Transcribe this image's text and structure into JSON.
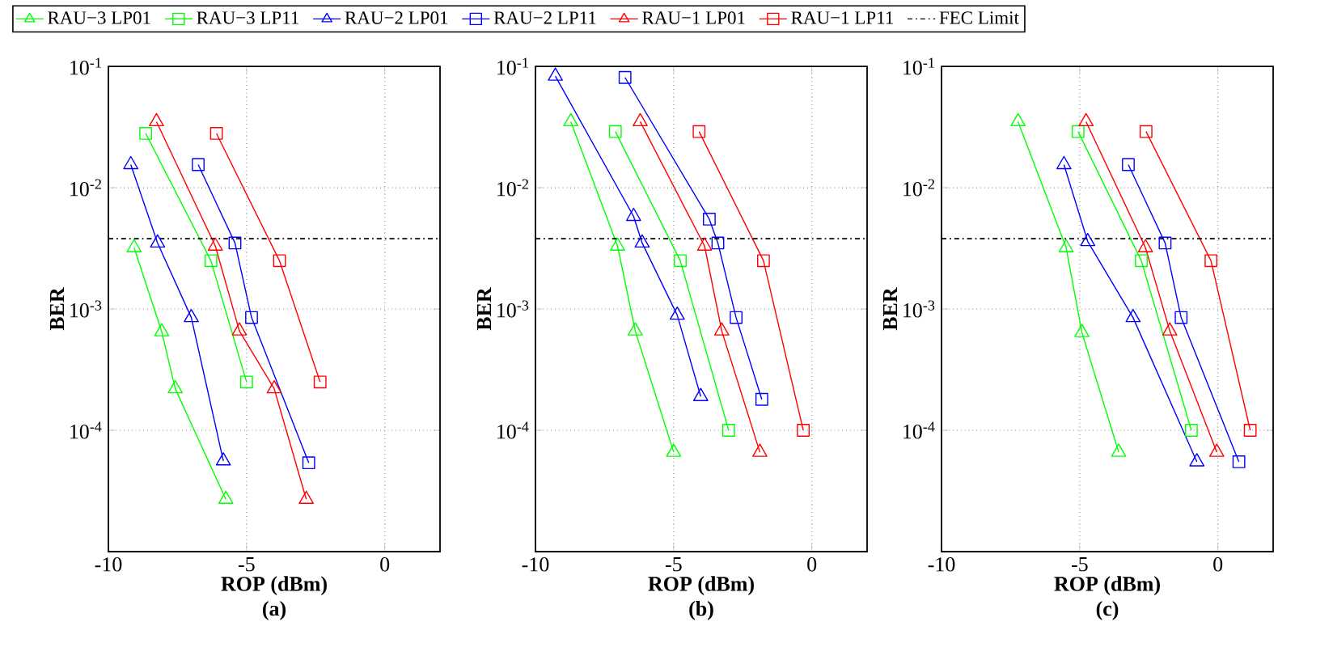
{
  "chart_data": [
    {
      "type": "line",
      "title": "(a)",
      "xlabel": "ROP (dBm)",
      "ylabel": "BER",
      "log": "y",
      "grid": true,
      "legend": "top",
      "xlim": [
        -10,
        2
      ],
      "xticks": [
        -10,
        -5,
        0
      ],
      "ylim": [
        1e-05,
        0.1
      ],
      "yticks": [
        {
          "value": 0.1,
          "label": "10$^{-1}$"
        },
        {
          "value": 0.01,
          "label": "10$^{-2}$"
        },
        {
          "value": 0.001,
          "label": "10$^{-3}$"
        },
        {
          "value": 0.0001,
          "label": "10$^{-4}$"
        }
      ],
      "series": [
        {
          "name": "RAU−3 LP01",
          "color": "#00ff00",
          "marker": "triangle",
          "x": [
            -9.07,
            -8.07,
            -7.58,
            -5.75
          ],
          "values": [
            0.0032,
            0.00065,
            0.00022,
            2.7e-05
          ]
        },
        {
          "name": "RAU−3 LP11",
          "color": "#00ff00",
          "marker": "square",
          "x": [
            -8.65,
            -6.29,
            -5.0
          ],
          "values": [
            0.028,
            0.0025,
            0.00025
          ]
        },
        {
          "name": "RAU−2 LP01",
          "color": "#0000ff",
          "marker": "triangle",
          "x": [
            -9.19,
            -8.22,
            -7.0,
            -5.84
          ],
          "values": [
            0.0155,
            0.0035,
            0.00085,
            5.6e-05
          ]
        },
        {
          "name": "RAU−2 LP11",
          "color": "#0000ff",
          "marker": "square",
          "x": [
            -6.75,
            -5.42,
            -4.82,
            -2.75
          ],
          "values": [
            0.0155,
            0.0035,
            0.00085,
            5.4e-05
          ]
        },
        {
          "name": "RAU−1 LP01",
          "color": "#ff0000",
          "marker": "triangle",
          "x": [
            -8.26,
            -6.13,
            -5.26,
            -4.0,
            -2.84
          ],
          "values": [
            0.035,
            0.0033,
            0.00066,
            0.00022,
            2.7e-05
          ]
        },
        {
          "name": "RAU−1 LP11",
          "color": "#ff0000",
          "marker": "square",
          "x": [
            -6.09,
            -3.81,
            -2.34
          ],
          "values": [
            0.028,
            0.0025,
            0.00025
          ]
        }
      ],
      "ref_lines": [
        {
          "axis": "y",
          "value": 0.0038,
          "label": "FEC Limit",
          "color": "#000000",
          "line_style": "dashdot"
        }
      ]
    },
    {
      "type": "line",
      "title": "(b)",
      "xlabel": "ROP (dBm)",
      "ylabel": "BER",
      "log": "y",
      "grid": true,
      "xlim": [
        -10,
        2
      ],
      "xticks": [
        -10,
        -5,
        0
      ],
      "ylim": [
        1e-05,
        0.1
      ],
      "yticks": [
        {
          "value": 0.1,
          "label": "10$^{-1}$"
        },
        {
          "value": 0.01,
          "label": "10$^{-2}$"
        },
        {
          "value": 0.001,
          "label": "10$^{-3}$"
        },
        {
          "value": 0.0001,
          "label": "10$^{-4}$"
        }
      ],
      "series": [
        {
          "color": "#00ff00",
          "marker": "triangle",
          "x": [
            -8.72,
            -7.03,
            -6.39,
            -5.0
          ],
          "values": [
            0.035,
            0.0033,
            0.00066,
            6.6e-05
          ]
        },
        {
          "color": "#00ff00",
          "marker": "square",
          "x": [
            -7.11,
            -4.76,
            -3.01
          ],
          "values": [
            0.029,
            0.0025,
            0.0001
          ]
        },
        {
          "color": "#0000ff",
          "marker": "triangle",
          "x": [
            -9.28,
            -6.45,
            -6.14,
            -4.87,
            -4.02
          ],
          "values": [
            0.083,
            0.0058,
            0.0035,
            0.00089,
            0.00019
          ]
        },
        {
          "color": "#0000ff",
          "marker": "square",
          "x": [
            -6.76,
            -3.71,
            -3.4,
            -2.74,
            -1.81
          ],
          "values": [
            0.081,
            0.0055,
            0.0035,
            0.00085,
            0.00018
          ]
        },
        {
          "color": "#ff0000",
          "marker": "triangle",
          "x": [
            -6.21,
            -3.88,
            -3.26,
            -1.88
          ],
          "values": [
            0.035,
            0.0033,
            0.00066,
            6.6e-05
          ]
        },
        {
          "color": "#ff0000",
          "marker": "square",
          "x": [
            -4.08,
            -1.75,
            -0.31
          ],
          "values": [
            0.029,
            0.0025,
            0.0001
          ]
        }
      ],
      "ref_lines": [
        {
          "axis": "y",
          "value": 0.0038,
          "color": "#000000",
          "line_style": "dashdot"
        }
      ]
    },
    {
      "type": "line",
      "title": "(c)",
      "xlabel": "ROP (dBm)",
      "ylabel": "BER",
      "log": "y",
      "grid": true,
      "xlim": [
        -10,
        2
      ],
      "xticks": [
        -10,
        -5,
        0
      ],
      "ylim": [
        1e-05,
        0.1
      ],
      "yticks": [
        {
          "value": 0.1,
          "label": "10$^{-1}$"
        },
        {
          "value": 0.01,
          "label": "10$^{-2}$"
        },
        {
          "value": 0.001,
          "label": "10$^{-3}$"
        },
        {
          "value": 0.0001,
          "label": "10$^{-4}$"
        }
      ],
      "series": [
        {
          "color": "#00ff00",
          "marker": "triangle",
          "x": [
            -7.23,
            -5.49,
            -4.92,
            -3.59
          ],
          "values": [
            0.035,
            0.0032,
            0.00064,
            6.6e-05
          ]
        },
        {
          "color": "#00ff00",
          "marker": "square",
          "x": [
            -5.06,
            -2.77,
            -0.96
          ],
          "values": [
            0.029,
            0.0025,
            0.0001
          ]
        },
        {
          "color": "#0000ff",
          "marker": "triangle",
          "x": [
            -5.57,
            -4.71,
            -3.07,
            -0.76
          ],
          "values": [
            0.0155,
            0.0036,
            0.00085,
            5.5e-05
          ]
        },
        {
          "color": "#0000ff",
          "marker": "square",
          "x": [
            -3.24,
            -1.91,
            -1.33,
            0.76
          ],
          "values": [
            0.0155,
            0.0035,
            0.00085,
            5.5e-05
          ]
        },
        {
          "color": "#ff0000",
          "marker": "triangle",
          "x": [
            -4.77,
            -2.62,
            -1.74,
            -0.04
          ],
          "values": [
            0.035,
            0.0032,
            0.00066,
            6.6e-05
          ]
        },
        {
          "color": "#ff0000",
          "marker": "square",
          "x": [
            -2.6,
            -0.25,
            1.17
          ],
          "values": [
            0.029,
            0.0025,
            0.0001
          ]
        }
      ],
      "ref_lines": [
        {
          "axis": "y",
          "value": 0.0038,
          "color": "#000000",
          "line_style": "dashdot"
        }
      ]
    }
  ]
}
